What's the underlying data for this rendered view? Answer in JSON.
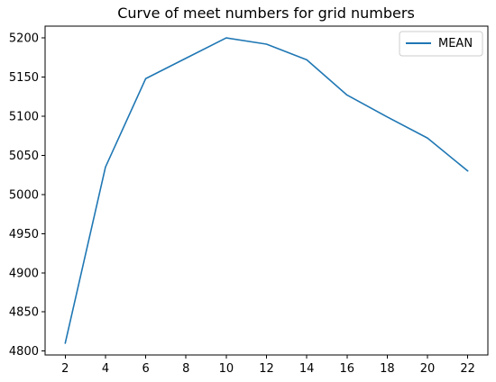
{
  "chart_data": {
    "type": "line",
    "title": "Curve of meet numbers for grid numbers",
    "xlabel": "",
    "ylabel": "",
    "x": [
      2,
      4,
      6,
      8,
      10,
      12,
      14,
      16,
      18,
      20,
      22
    ],
    "series": [
      {
        "name": "MEAN",
        "color": "#1f77b4",
        "values": [
          4810,
          5035,
          5148,
          5174,
          5200,
          5192,
          5172,
          5127,
          5099,
          5072,
          5030
        ]
      }
    ],
    "xlim": [
      1,
      23
    ],
    "ylim": [
      4795,
      5215
    ],
    "xticks": [
      2,
      4,
      6,
      8,
      10,
      12,
      14,
      16,
      18,
      20,
      22
    ],
    "yticks": [
      4800,
      4850,
      4900,
      4950,
      5000,
      5050,
      5100,
      5150,
      5200
    ],
    "grid": false,
    "legend_position": "top-right"
  }
}
